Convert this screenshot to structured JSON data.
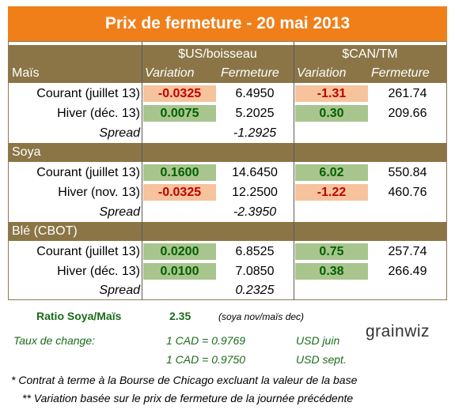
{
  "title": "Prix de fermeture - 20 mai 2013",
  "headers": {
    "usd": "$US/boisseau",
    "cad": "$CAN/TM",
    "variation": "Variation",
    "fermeture": "Fermeture"
  },
  "sections": [
    {
      "name": "Maïs",
      "rows": [
        {
          "label": "Courant (juillet 13)",
          "us_var": "-0.0325",
          "us_close": "6.4950",
          "ca_var": "-1.31",
          "ca_close": "261.74"
        },
        {
          "label": "Hiver (déc. 13)",
          "us_var": "0.0075",
          "us_close": "5.2025",
          "ca_var": "0.30",
          "ca_close": "209.66"
        }
      ],
      "spread_label": "Spread",
      "spread": "-1.2925"
    },
    {
      "name": "Soya",
      "rows": [
        {
          "label": "Courant (juillet 13)",
          "us_var": "0.1600",
          "us_close": "14.6450",
          "ca_var": "6.02",
          "ca_close": "550.84"
        },
        {
          "label": "Hiver (nov. 13)",
          "us_var": "-0.0325",
          "us_close": "12.2500",
          "ca_var": "-1.22",
          "ca_close": "460.76"
        }
      ],
      "spread_label": "Spread",
      "spread": "-2.3950"
    },
    {
      "name": "Blé (CBOT)",
      "rows": [
        {
          "label": "Courant (juillet 13)",
          "us_var": "0.0200",
          "us_close": "6.8525",
          "ca_var": "0.75",
          "ca_close": "257.74"
        },
        {
          "label": "Hiver (déc. 13)",
          "us_var": "0.0100",
          "us_close": "7.0850",
          "ca_var": "0.38",
          "ca_close": "266.49"
        }
      ],
      "spread_label": "Spread",
      "spread": "0.2325"
    }
  ],
  "ratio": {
    "label": "Ratio Soya/Maïs",
    "value": "2.35",
    "note": "(soya nov/maïs dec)"
  },
  "exchange": {
    "label": "Taux de change:",
    "line1": "1 CAD =  0.9769",
    "line1_unit": "USD juin",
    "line2": "1 CAD =  0.9750",
    "line2_unit": "USD sept."
  },
  "logo": "grainwiz",
  "notes": [
    "* Contrat à terme à la Bourse de Chicago excluant la valeur de la base",
    "** Variation basée sur le prix de fermeture de la journée précédente"
  ],
  "colors": {
    "title_bg": "#f07f1a",
    "header_bg": "#8b7546",
    "positive_bg": "#a9c58e",
    "negative_bg": "#f6c39d"
  }
}
